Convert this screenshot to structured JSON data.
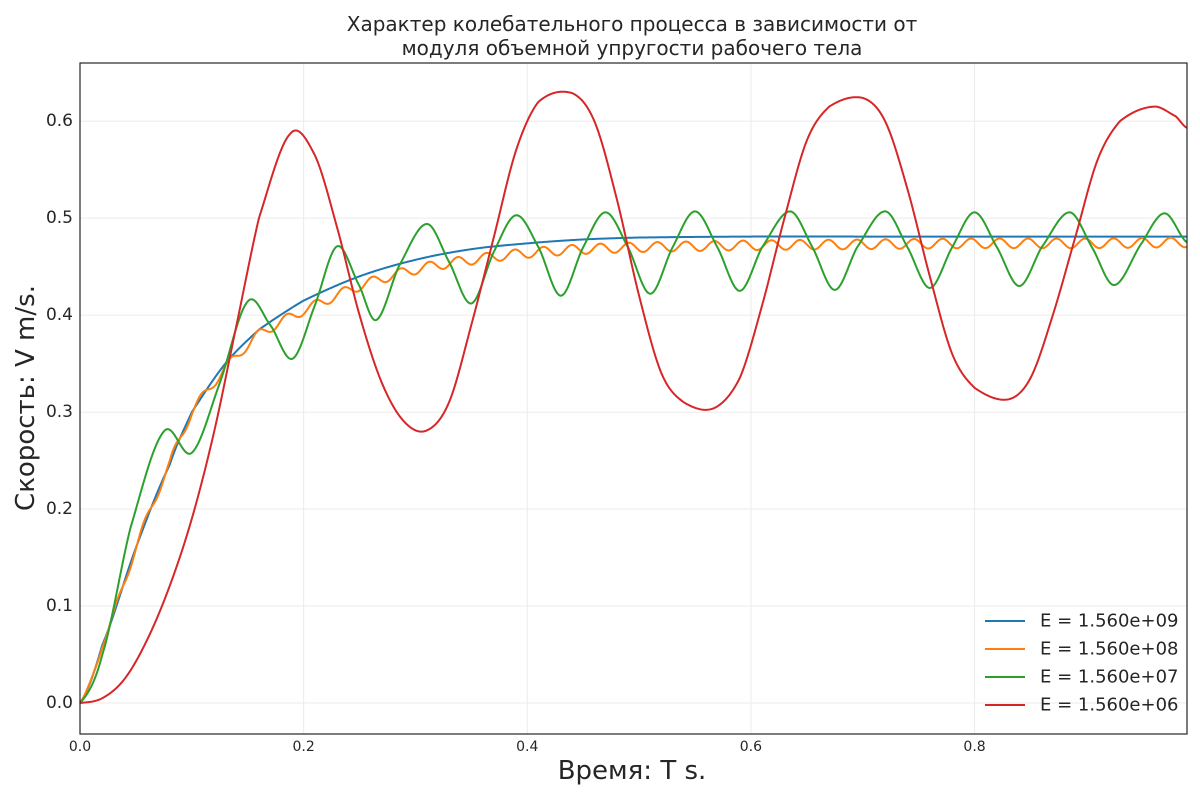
{
  "chart_data": {
    "type": "line",
    "title_lines": [
      "Характер колебательного процесса в зависимости от",
      "модуля объемной упругости рабочего тела"
    ],
    "xlabel": "Время: T s.",
    "ylabel": "Скорость: V  m/s.",
    "xlim": [
      0,
      0.99
    ],
    "ylim": [
      -0.032,
      0.66
    ],
    "x_ticks": [
      0.0,
      0.2,
      0.4,
      0.6,
      0.8
    ],
    "x_tick_labels": [
      "0.0",
      "0.2",
      "0.4",
      "0.6",
      "0.8"
    ],
    "y_ticks": [
      0.0,
      0.1,
      0.2,
      0.3,
      0.4,
      0.5,
      0.6
    ],
    "y_tick_labels": [
      "0.0",
      "0.1",
      "0.2",
      "0.3",
      "0.4",
      "0.5",
      "0.6"
    ],
    "grid": true,
    "legend_position": "lower-right",
    "series": [
      {
        "name": "E = 1.560e+09",
        "color": "#1f77b4",
        "x": [
          0.0,
          0.02,
          0.05,
          0.08,
          0.1,
          0.13,
          0.16,
          0.2,
          0.25,
          0.3,
          0.35,
          0.4,
          0.45,
          0.5,
          0.6,
          0.7,
          0.8,
          0.9,
          0.99
        ],
        "y": [
          0.0,
          0.06,
          0.16,
          0.245,
          0.3,
          0.35,
          0.385,
          0.415,
          0.44,
          0.457,
          0.468,
          0.474,
          0.478,
          0.48,
          0.481,
          0.481,
          0.481,
          0.481,
          0.481
        ]
      },
      {
        "name": "E = 1.560e+08",
        "color": "#ff7f0e",
        "x": [
          0.0,
          0.02,
          0.05,
          0.08,
          0.1,
          0.13,
          0.16,
          0.2,
          0.25,
          0.3,
          0.35,
          0.4,
          0.45,
          0.5,
          0.6,
          0.7,
          0.8,
          0.9,
          0.99
        ],
        "y": [
          0.0,
          0.06,
          0.16,
          0.245,
          0.3,
          0.345,
          0.38,
          0.405,
          0.43,
          0.447,
          0.457,
          0.464,
          0.468,
          0.47,
          0.472,
          0.473,
          0.474,
          0.474,
          0.475
        ],
        "ripple": 0.005
      },
      {
        "name": "E = 1.560e+07",
        "color": "#2ca02c",
        "x": [
          0.0,
          0.02,
          0.045,
          0.075,
          0.1,
          0.125,
          0.15,
          0.17,
          0.19,
          0.21,
          0.23,
          0.25,
          0.265,
          0.285,
          0.31,
          0.33,
          0.35,
          0.37,
          0.39,
          0.41,
          0.43,
          0.45,
          0.47,
          0.49,
          0.51,
          0.53,
          0.55,
          0.57,
          0.59,
          0.61,
          0.635,
          0.655,
          0.675,
          0.695,
          0.72,
          0.74,
          0.76,
          0.78,
          0.8,
          0.82,
          0.84,
          0.86,
          0.885,
          0.905,
          0.925,
          0.95,
          0.97,
          0.99
        ],
        "y": [
          0.0,
          0.05,
          0.18,
          0.28,
          0.258,
          0.33,
          0.414,
          0.39,
          0.355,
          0.41,
          0.471,
          0.43,
          0.395,
          0.45,
          0.494,
          0.455,
          0.412,
          0.465,
          0.503,
          0.47,
          0.42,
          0.47,
          0.506,
          0.47,
          0.422,
          0.47,
          0.507,
          0.47,
          0.425,
          0.47,
          0.507,
          0.47,
          0.426,
          0.47,
          0.507,
          0.47,
          0.428,
          0.47,
          0.506,
          0.47,
          0.43,
          0.47,
          0.506,
          0.47,
          0.431,
          0.475,
          0.505,
          0.475
        ]
      },
      {
        "name": "E = 1.560e+06",
        "color": "#d62728",
        "x": [
          0.0,
          0.02,
          0.04,
          0.06,
          0.08,
          0.1,
          0.12,
          0.14,
          0.16,
          0.188,
          0.21,
          0.23,
          0.25,
          0.27,
          0.29,
          0.31,
          0.33,
          0.35,
          0.37,
          0.39,
          0.41,
          0.44,
          0.46,
          0.48,
          0.5,
          0.52,
          0.54,
          0.567,
          0.59,
          0.61,
          0.63,
          0.65,
          0.67,
          0.7,
          0.72,
          0.74,
          0.76,
          0.78,
          0.8,
          0.83,
          0.85,
          0.87,
          0.89,
          0.91,
          0.93,
          0.96,
          0.98,
          0.99
        ],
        "y": [
          0.0,
          0.005,
          0.025,
          0.065,
          0.12,
          0.19,
          0.28,
          0.39,
          0.5,
          0.587,
          0.565,
          0.49,
          0.4,
          0.33,
          0.29,
          0.281,
          0.31,
          0.39,
          0.48,
          0.57,
          0.62,
          0.629,
          0.6,
          0.52,
          0.42,
          0.34,
          0.31,
          0.304,
          0.335,
          0.41,
          0.5,
          0.58,
          0.615,
          0.624,
          0.6,
          0.53,
          0.44,
          0.36,
          0.325,
          0.313,
          0.335,
          0.4,
          0.48,
          0.56,
          0.6,
          0.615,
          0.605,
          0.593
        ]
      }
    ]
  }
}
